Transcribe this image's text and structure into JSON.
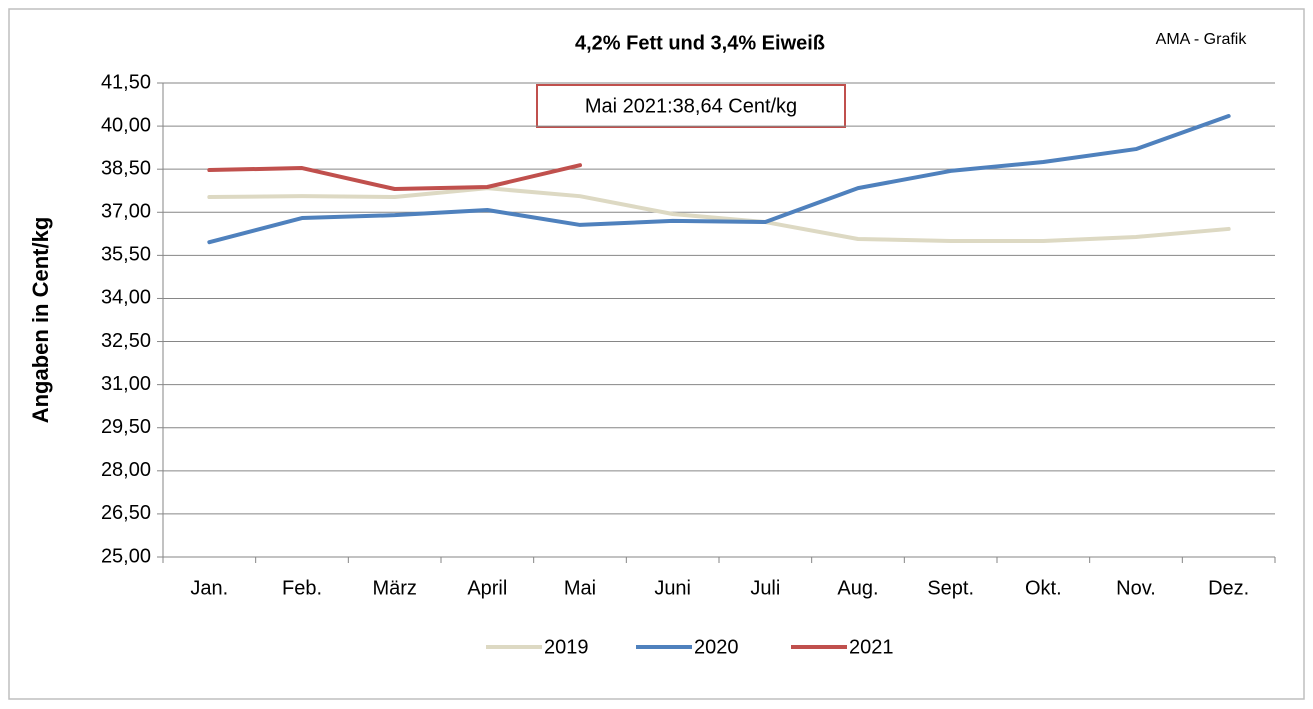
{
  "chart_data": {
    "type": "line",
    "title": "4,2% Fett und 3,4% Eiweiß",
    "source": "AMA - Grafik",
    "annotation": "Mai 2021:38,64 Cent/kg",
    "y_label": "Angaben in Cent/kg",
    "categories": [
      "Jan.",
      "Feb.",
      "März",
      "April",
      "Mai",
      "Juni",
      "Juli",
      "Aug.",
      "Sept.",
      "Okt.",
      "Nov.",
      "Dez."
    ],
    "series": [
      {
        "name": "2019",
        "color": "#ddd9c3",
        "values": [
          37.53,
          37.56,
          37.53,
          37.84,
          37.56,
          36.94,
          36.66,
          36.07,
          36.0,
          36.0,
          36.14,
          36.42
        ]
      },
      {
        "name": "2020",
        "color": "#4f81bd",
        "values": [
          35.96,
          36.8,
          36.9,
          37.08,
          36.56,
          36.7,
          36.66,
          37.84,
          38.44,
          38.75,
          39.2,
          40.35
        ]
      },
      {
        "name": "2021",
        "color": "#c0504d",
        "values": [
          38.47,
          38.54,
          37.81,
          37.88,
          38.64,
          null,
          null,
          null,
          null,
          null,
          null,
          null
        ]
      }
    ],
    "ylim": [
      25,
      41.5
    ],
    "yticks": [
      {
        "value": 25,
        "label": "25,00"
      },
      {
        "value": 26.5,
        "label": "26,50"
      },
      {
        "value": 28,
        "label": "28,00"
      },
      {
        "value": 29.5,
        "label": "29,50"
      },
      {
        "value": 31,
        "label": "31,00"
      },
      {
        "value": 32.5,
        "label": "32,50"
      },
      {
        "value": 34,
        "label": "34,00"
      },
      {
        "value": 35.5,
        "label": "35,50"
      },
      {
        "value": 37,
        "label": "37,00"
      },
      {
        "value": 38.5,
        "label": "38,50"
      },
      {
        "value": 40,
        "label": "40,00"
      },
      {
        "value": 41.5,
        "label": "41,50"
      }
    ],
    "grid": true,
    "legend": "bottom"
  }
}
